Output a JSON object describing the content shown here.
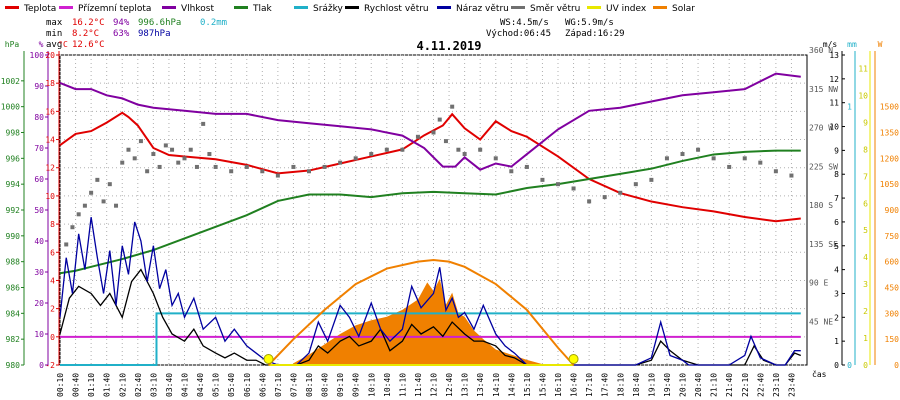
{
  "legend": [
    {
      "label": "Teplota",
      "color": "#e00000"
    },
    {
      "label": "Přízemní teplota",
      "color": "#d020d0"
    },
    {
      "label": "Vlhkost",
      "color": "#8000a0"
    },
    {
      "label": "Tlak",
      "color": "#208020"
    },
    {
      "label": "Srážky",
      "color": "#20b0c8"
    },
    {
      "label": "Rychlost větru",
      "color": "#000000"
    },
    {
      "label": "Náraz větru",
      "color": "#0000a0"
    },
    {
      "label": "Směr větru",
      "color": "#707070"
    },
    {
      "label": "UV index",
      "color": "#e8e800"
    },
    {
      "label": "Solar",
      "color": "#f08000"
    }
  ],
  "stats": {
    "max_label": "max",
    "max_temp": "16.2°C",
    "max_hum": "94%",
    "max_press": "996.6hPa",
    "max_rain": "0.2mm",
    "min_label": "min",
    "min_temp": "8.2°C",
    "min_hum": "63%",
    "min_press": "987hPa",
    "avg_label": "avg",
    "avg_temp": "12.6°C",
    "ws": "WS:4.5m/s",
    "wg": "WG:5.9m/s",
    "sunrise": "Východ:06:45",
    "sunset": "Západ:16:29"
  },
  "chart_data": {
    "type": "line",
    "title": "4.11.2019",
    "xlabel": "čas",
    "x_ticks": [
      "00:10",
      "00:40",
      "01:10",
      "01:40",
      "02:10",
      "02:40",
      "03:10",
      "03:40",
      "04:10",
      "04:40",
      "05:10",
      "05:40",
      "06:10",
      "06:40",
      "07:10",
      "07:40",
      "08:10",
      "08:40",
      "09:10",
      "09:40",
      "10:10",
      "10:40",
      "11:10",
      "11:40",
      "12:10",
      "12:40",
      "13:10",
      "13:40",
      "14:10",
      "14:40",
      "15:10",
      "15:40",
      "16:10",
      "16:40",
      "17:10",
      "17:40",
      "18:10",
      "18:40",
      "19:10",
      "19:40",
      "20:10",
      "20:40",
      "21:10",
      "21:40",
      "22:10",
      "22:40",
      "23:10",
      "23:40"
    ],
    "axes": {
      "pressure": {
        "unit": "hPa",
        "ticks": [
          "980",
          "982",
          "984",
          "986",
          "988",
          "990",
          "992",
          "994",
          "996",
          "998",
          "1000",
          "1002"
        ],
        "range": [
          980,
          1004
        ]
      },
      "humidity": {
        "unit": "%",
        "ticks": [
          "0",
          "10",
          "20",
          "30",
          "40",
          "50",
          "60",
          "70",
          "80",
          "90",
          "100"
        ],
        "range": [
          0,
          100
        ]
      },
      "temperature": {
        "unit": "°C",
        "ticks": [
          "-2",
          "0",
          "2",
          "4",
          "6",
          "8",
          "10",
          "12",
          "14",
          "16",
          "18",
          "20"
        ],
        "range": [
          -2,
          20
        ]
      },
      "direction": {
        "ticks": [
          "45\nNE",
          "90\nE",
          "135\nSE",
          "180\nS",
          "225\nSW",
          "270\nW",
          "315\nNW",
          "360\nN"
        ],
        "range": [
          0,
          360
        ]
      },
      "wind": {
        "unit": "m/s",
        "ticks": [
          "0",
          "1",
          "2",
          "3",
          "4",
          "5",
          "6",
          "7",
          "8",
          "9",
          "10",
          "11",
          "12",
          "13"
        ],
        "range": [
          0,
          13
        ]
      },
      "rain": {
        "unit": "mm",
        "ticks": [
          "0",
          "1"
        ],
        "range": [
          0,
          1.2
        ]
      },
      "uv": {
        "ticks": [
          "0",
          "1",
          "2",
          "3",
          "4",
          "5",
          "6",
          "7",
          "8",
          "9",
          "10",
          "11"
        ],
        "range": [
          0,
          11.5
        ]
      },
      "solar": {
        "unit": "W",
        "ticks": [
          "0",
          "150",
          "300",
          "450",
          "600",
          "750",
          "900",
          "1050",
          "1200",
          "1350",
          "1500"
        ],
        "range": [
          0,
          1800
        ]
      }
    },
    "series": [
      {
        "name": "Teplota",
        "axis": "temperature",
        "color": "#e00000",
        "x": [
          0,
          0.5,
          1,
          1.5,
          2,
          2.2,
          2.5,
          3,
          3.5,
          4,
          5,
          6,
          7,
          8,
          9,
          10,
          11,
          11.7,
          12.3,
          12.6,
          13,
          13.5,
          14,
          14.5,
          15,
          16,
          17,
          18,
          19,
          20,
          21,
          22,
          23,
          23.8
        ],
        "y": [
          13.6,
          14.4,
          14.6,
          15.2,
          15.9,
          15.6,
          15.0,
          13.4,
          12.9,
          12.8,
          12.6,
          12.2,
          11.6,
          11.8,
          12.3,
          12.8,
          13.3,
          14.3,
          15.0,
          15.8,
          14.8,
          14.0,
          15.3,
          14.6,
          14.2,
          12.8,
          11.2,
          10.2,
          9.6,
          9.2,
          8.9,
          8.5,
          8.2,
          8.4
        ]
      },
      {
        "name": "Vlhkost",
        "axis": "humidity",
        "color": "#8000a0",
        "x": [
          0,
          0.5,
          1,
          1.5,
          2,
          2.5,
          3,
          4,
          5,
          6,
          7,
          8,
          9,
          10,
          11,
          11.7,
          12.3,
          12.7,
          13,
          13.5,
          14,
          14.5,
          15,
          16,
          17,
          18,
          19,
          20,
          21,
          22,
          23,
          23.8
        ],
        "y": [
          91,
          89,
          89,
          87,
          86,
          84,
          83,
          82,
          81,
          81,
          79,
          78,
          77,
          76,
          74,
          70,
          64,
          64,
          67,
          63,
          65,
          64,
          68,
          76,
          82,
          83,
          85,
          87,
          88,
          89,
          94,
          93
        ]
      },
      {
        "name": "Tlak",
        "axis": "pressure",
        "color": "#208020",
        "x": [
          0,
          0.5,
          1,
          2,
          3,
          4,
          5,
          6,
          7,
          8,
          9,
          10,
          11,
          12,
          13,
          14,
          15,
          16,
          17,
          18,
          19,
          20,
          21,
          22,
          23,
          23.8
        ],
        "y": [
          987.1,
          987.3,
          987.6,
          988.2,
          988.9,
          989.8,
          990.7,
          991.6,
          992.7,
          993.2,
          993.2,
          993.0,
          993.3,
          993.4,
          993.3,
          993.2,
          993.7,
          994.0,
          994.4,
          994.8,
          995.2,
          995.8,
          996.3,
          996.5,
          996.6,
          996.6
        ]
      },
      {
        "name": "Přízemní teplota",
        "axis": "temperature",
        "color": "#d020d0",
        "x": [
          0,
          23.8
        ],
        "y": [
          0,
          0
        ]
      },
      {
        "name": "Srážky",
        "axis": "rain",
        "color": "#20b0c8",
        "x": [
          0,
          3.1,
          3.1,
          23.8
        ],
        "y": [
          0,
          0,
          0.2,
          0.2
        ]
      },
      {
        "name": "Rychlost větru",
        "axis": "wind",
        "color": "#000000",
        "x": [
          0,
          0.3,
          0.6,
          1,
          1.3,
          1.6,
          2,
          2.3,
          2.6,
          3,
          3.3,
          3.6,
          4,
          4.3,
          4.6,
          5,
          5.3,
          5.6,
          6,
          6.3,
          6.6,
          7,
          7.3,
          7.6,
          8,
          8.3,
          8.6,
          9,
          9.3,
          9.6,
          10,
          10.3,
          10.6,
          11,
          11.3,
          11.6,
          12,
          12.3,
          12.6,
          13,
          13.3,
          13.6,
          14,
          14.3,
          14.6,
          15,
          15.3,
          15.6,
          16,
          16.5,
          17,
          17.5,
          18,
          18.5,
          19,
          19.3,
          19.6,
          20,
          20.5,
          21,
          21.5,
          22,
          22.3,
          22.6,
          23,
          23.3,
          23.6,
          23.8
        ],
        "y": [
          1.3,
          2.8,
          3.3,
          3.0,
          2.5,
          3.0,
          2.0,
          3.5,
          4.0,
          3.0,
          2.0,
          1.3,
          1.0,
          1.5,
          0.8,
          0.5,
          0.3,
          0.5,
          0.2,
          0.2,
          0,
          0,
          0,
          0,
          0.2,
          0.8,
          0.5,
          1.0,
          1.2,
          0.8,
          1.0,
          1.5,
          0.6,
          1.0,
          1.7,
          1.3,
          1.6,
          1.2,
          1.8,
          1.3,
          1.0,
          1.0,
          0.8,
          0.4,
          0.3,
          0,
          0,
          0,
          0,
          0,
          0,
          0,
          0,
          0,
          0.2,
          1.0,
          0.6,
          0.2,
          0,
          0,
          0,
          0,
          0.8,
          0.2,
          0,
          0,
          0.5,
          0.4
        ]
      },
      {
        "name": "Náraz větru",
        "axis": "wind",
        "color": "#0000a0",
        "x": [
          0,
          0.2,
          0.4,
          0.6,
          0.8,
          1,
          1.2,
          1.4,
          1.6,
          1.8,
          2,
          2.2,
          2.4,
          2.6,
          2.8,
          3,
          3.2,
          3.4,
          3.6,
          3.8,
          4,
          4.3,
          4.6,
          5,
          5.3,
          5.6,
          6,
          6.3,
          6.6,
          7,
          7.3,
          7.6,
          8,
          8.3,
          8.6,
          9,
          9.3,
          9.6,
          10,
          10.3,
          10.6,
          11,
          11.3,
          11.6,
          12,
          12.2,
          12.4,
          12.6,
          12.8,
          13,
          13.3,
          13.6,
          14,
          14.3,
          14.6,
          15,
          15.5,
          16,
          16.5,
          17,
          17.5,
          18,
          18.5,
          19,
          19.3,
          19.6,
          20,
          20.2,
          20.5,
          21,
          21.5,
          22,
          22.2,
          22.5,
          23,
          23.3,
          23.6,
          23.8
        ],
        "y": [
          2.0,
          4.5,
          3.0,
          5.5,
          4.0,
          6.2,
          4.5,
          3.0,
          4.8,
          2.5,
          5.0,
          3.8,
          6.0,
          5.2,
          3.5,
          5.0,
          3.2,
          4.0,
          2.5,
          3.0,
          2.0,
          2.8,
          1.5,
          2.0,
          1.0,
          1.5,
          0.8,
          0.5,
          0.2,
          0,
          0,
          0,
          0.5,
          1.8,
          1.0,
          2.5,
          2.0,
          1.2,
          2.6,
          1.5,
          1.0,
          1.5,
          3.3,
          2.4,
          3.0,
          4.1,
          2.3,
          2.8,
          2.0,
          2.2,
          1.5,
          2.5,
          1.3,
          0.8,
          0.5,
          0,
          0,
          0,
          0,
          0,
          0,
          0,
          0,
          0.3,
          1.8,
          0.4,
          0.2,
          0,
          0,
          0,
          0,
          0.4,
          1.2,
          0.3,
          0,
          0,
          0.6,
          0.6
        ]
      },
      {
        "name": "Směr větru",
        "axis": "direction",
        "color": "#707070",
        "x": [
          0.2,
          0.4,
          0.6,
          0.8,
          1.0,
          1.2,
          1.4,
          1.6,
          1.8,
          2.0,
          2.2,
          2.4,
          2.6,
          2.8,
          3.0,
          3.2,
          3.4,
          3.6,
          3.8,
          4.0,
          4.2,
          4.4,
          4.6,
          4.8,
          5.0,
          5.5,
          6.0,
          6.5,
          7.0,
          7.5,
          8.0,
          8.5,
          9.0,
          9.5,
          10.0,
          10.5,
          11.0,
          11.5,
          12.0,
          12.2,
          12.4,
          12.6,
          12.8,
          13.0,
          13.5,
          14.0,
          14.5,
          15.0,
          15.5,
          16.0,
          16.5,
          17.0,
          17.5,
          18.0,
          18.5,
          19.0,
          19.5,
          20.0,
          20.5,
          21.0,
          21.5,
          22.0,
          22.5,
          23.0,
          23.5
        ],
        "y": [
          140,
          160,
          175,
          185,
          200,
          215,
          190,
          210,
          185,
          235,
          250,
          240,
          260,
          225,
          245,
          230,
          255,
          250,
          235,
          240,
          250,
          230,
          280,
          245,
          230,
          225,
          230,
          225,
          220,
          230,
          225,
          230,
          235,
          240,
          245,
          250,
          250,
          265,
          270,
          285,
          260,
          300,
          250,
          245,
          250,
          240,
          225,
          230,
          215,
          210,
          205,
          190,
          195,
          200,
          210,
          215,
          240,
          245,
          250,
          240,
          230,
          240,
          235,
          225,
          220
        ]
      },
      {
        "name": "UV index",
        "axis": "uv",
        "color": "#e8e800",
        "x": [
          6.7,
          16.5
        ],
        "y": [
          0,
          0
        ]
      },
      {
        "name": "Solar",
        "axis": "solar",
        "color": "#f08000",
        "x": [
          6.7,
          7.5,
          8.5,
          9.5,
          10.5,
          11.5,
          12.0,
          12.5,
          13.0,
          14.0,
          15.0,
          16.0,
          16.5
        ],
        "y": [
          0,
          150,
          320,
          470,
          560,
          600,
          610,
          600,
          570,
          470,
          320,
          100,
          0
        ]
      }
    ],
    "solar_fill": {
      "x": [
        7.5,
        8,
        8.5,
        9,
        9.5,
        10,
        10.5,
        11,
        11.5,
        11.8,
        12,
        12.2,
        12.4,
        12.6,
        12.8,
        13,
        13.3,
        13.6,
        14,
        14.5,
        15,
        15.5
      ],
      "y": [
        10,
        60,
        120,
        180,
        230,
        260,
        280,
        320,
        380,
        480,
        430,
        500,
        350,
        420,
        300,
        280,
        200,
        150,
        90,
        60,
        30,
        5
      ]
    }
  }
}
